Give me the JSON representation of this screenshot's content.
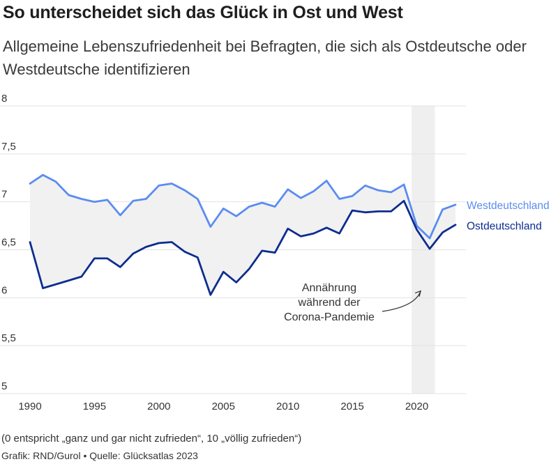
{
  "header": {
    "title": "So unterscheidet sich das Glück in Ost und West",
    "subtitle": "Allgemeine Lebenszufriedenheit bei Befragten, die sich als Ostdeutsche oder Westdeutsche identifizieren"
  },
  "footer": {
    "note": "(0 entspricht „ganz und gar nicht zufrieden“, 10 „völlig zufrieden“)",
    "credit": "Grafik: RND/Gurol • Quelle: Glücksatlas 2023"
  },
  "chart_data": {
    "type": "line",
    "title": "So unterscheidet sich das Glück in Ost und West",
    "subtitle": "Allgemeine Lebenszufriedenheit bei Befragten, die sich als Ostdeutsche oder Westdeutsche identifizieren",
    "xlim": [
      1990,
      2023
    ],
    "ylim": [
      5,
      8
    ],
    "x_ticks": [
      1990,
      1995,
      2000,
      2005,
      2010,
      2015,
      2020
    ],
    "x_tick_labels": [
      "1990",
      "1995",
      "2000",
      "2005",
      "2010",
      "2015",
      "2020"
    ],
    "y_ticks": [
      5,
      5.5,
      6,
      6.5,
      7,
      7.5,
      8
    ],
    "y_tick_labels": [
      "5",
      "5,5",
      "6",
      "6,5",
      "7",
      "7,5",
      "8"
    ],
    "grid": "horizontal",
    "x": [
      1990,
      1991,
      1992,
      1993,
      1994,
      1995,
      1996,
      1997,
      1998,
      1999,
      2000,
      2001,
      2002,
      2003,
      2004,
      2005,
      2006,
      2007,
      2008,
      2009,
      2010,
      2011,
      2012,
      2013,
      2014,
      2015,
      2016,
      2017,
      2018,
      2019,
      2020,
      2021,
      2022,
      2023
    ],
    "series": [
      {
        "name": "Westdeutschland",
        "color": "#5b8cf0",
        "values": [
          7.19,
          7.28,
          7.21,
          7.07,
          7.03,
          7.0,
          7.02,
          6.86,
          7.01,
          7.03,
          7.17,
          7.19,
          7.12,
          7.03,
          6.74,
          6.93,
          6.85,
          6.95,
          6.99,
          6.95,
          7.13,
          7.04,
          7.11,
          7.22,
          7.03,
          7.06,
          7.17,
          7.12,
          7.1,
          7.18,
          6.75,
          6.62,
          6.92,
          6.97
        ]
      },
      {
        "name": "Ostdeutschland",
        "color": "#0d2d8f",
        "values": [
          6.58,
          6.1,
          6.14,
          6.18,
          6.22,
          6.41,
          6.41,
          6.32,
          6.46,
          6.53,
          6.57,
          6.58,
          6.48,
          6.42,
          6.03,
          6.27,
          6.16,
          6.3,
          6.49,
          6.47,
          6.72,
          6.64,
          6.67,
          6.73,
          6.67,
          6.91,
          6.89,
          6.9,
          6.9,
          7.01,
          6.71,
          6.51,
          6.68,
          6.76
        ]
      }
    ],
    "shaded_region": {
      "x_start": 2019.6,
      "x_end": 2021.4,
      "color": "#efefef"
    },
    "band_fill": "#f0f0f0",
    "annotation": {
      "lines": [
        "Annährung",
        "während der",
        "Corona-Pandemie"
      ],
      "arrow_target": [
        2020.3,
        6.07
      ]
    },
    "legend_placement": "right-end-of-lines"
  }
}
